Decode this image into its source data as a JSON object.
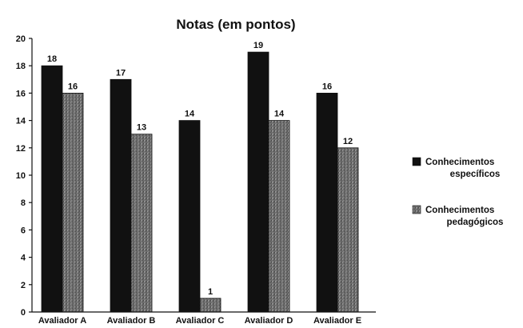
{
  "chart_data": {
    "type": "bar",
    "title": "Notas (em pontos)",
    "xlabel": "",
    "ylabel": "",
    "ylim": [
      0,
      20
    ],
    "yticks": [
      0,
      2,
      4,
      6,
      8,
      10,
      12,
      14,
      16,
      18,
      20
    ],
    "grid": false,
    "legend_position": "right",
    "categories": [
      "Avaliador A",
      "Avaliador B",
      "Avaliador C",
      "Avaliador D",
      "Avaliador E"
    ],
    "series": [
      {
        "name_lines": [
          "Conhecimentos",
          "específicos"
        ],
        "values": [
          18,
          17,
          14,
          19,
          16
        ],
        "color": "#111111"
      },
      {
        "name_lines": [
          "Conhecimentos",
          "pedagógicos"
        ],
        "values": [
          16,
          13,
          1,
          14,
          12
        ],
        "color": "#6e6e6e"
      }
    ]
  }
}
